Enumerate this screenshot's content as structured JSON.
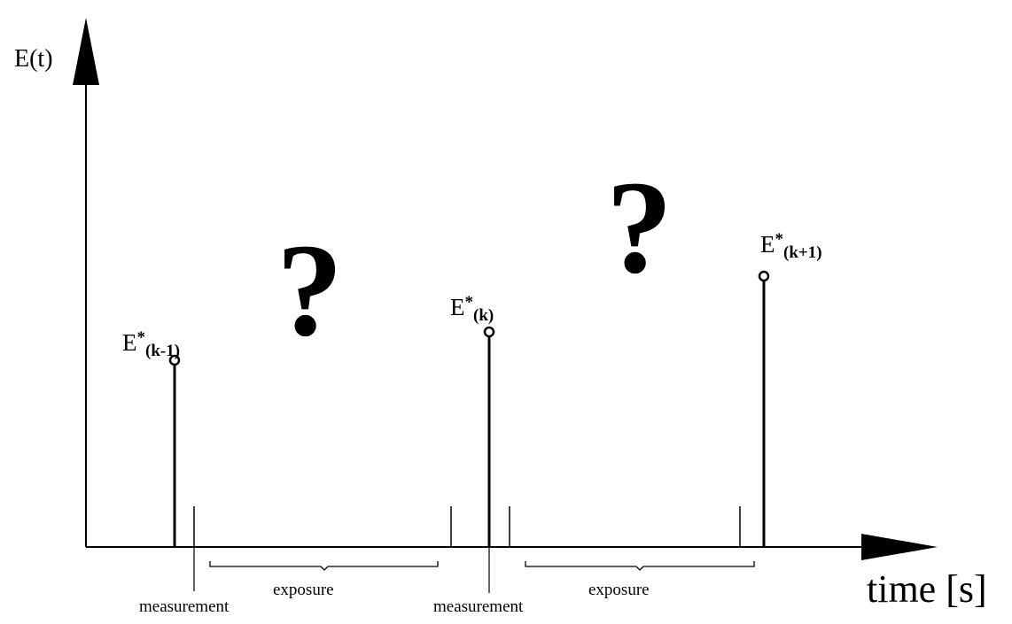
{
  "axes": {
    "y_label": "E(t)",
    "x_label": "time [s]"
  },
  "samples": [
    {
      "base": "E",
      "star": "*",
      "subscript": "(k-1)"
    },
    {
      "base": "E",
      "star": "*",
      "subscript": "(k)"
    },
    {
      "base": "E",
      "star": "*",
      "subscript": "(k+1)"
    }
  ],
  "unknown_marks": [
    "?",
    "?"
  ],
  "intervals": {
    "measurement_label": "measurement",
    "exposure_label": "exposure"
  }
}
